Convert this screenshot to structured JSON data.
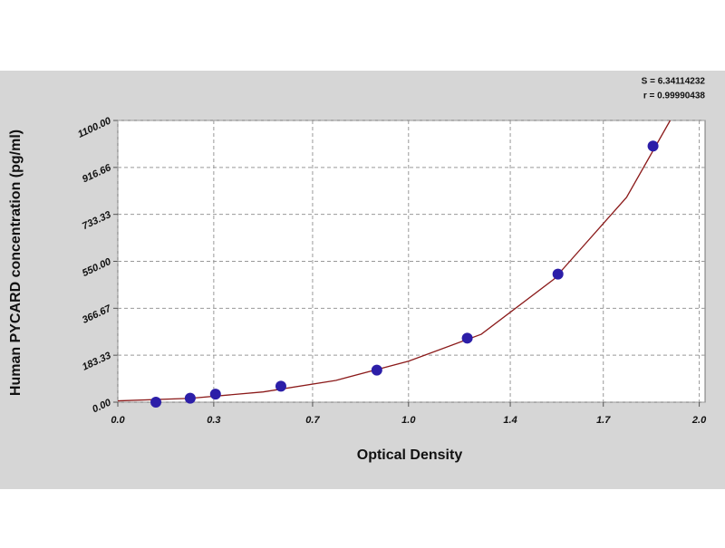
{
  "chart_data": {
    "type": "scatter",
    "x_label": "Optical Density",
    "y_label": "Human PYCARD concentration (pg/ml)",
    "annotations": [
      "S = 6.34114232",
      "r = 0.99990438"
    ],
    "xlim": [
      0,
      2.02
    ],
    "ylim": [
      0,
      1100
    ],
    "xticks": [
      {
        "value": 0,
        "label": "0.0"
      },
      {
        "value": 0.33,
        "label": "0.3"
      },
      {
        "value": 0.67,
        "label": "0.7"
      },
      {
        "value": 1,
        "label": "1.0"
      },
      {
        "value": 1.35,
        "label": "1.4"
      },
      {
        "value": 1.67,
        "label": "1.7"
      },
      {
        "value": 2,
        "label": "2.0"
      }
    ],
    "yticks": [
      {
        "value": 0,
        "label": "0.00"
      },
      183.33,
      366.67,
      {
        "value": 550,
        "label": "550.00"
      },
      733.33,
      916.66,
      {
        "value": 1100,
        "label": "1100.00"
      }
    ],
    "grid": true,
    "series": [
      {
        "type": "line",
        "color": "#8b1a1a",
        "x": [
          0,
          0.25,
          0.5,
          0.75,
          1.0,
          1.25,
          1.5,
          1.75,
          1.9
        ],
        "values": [
          5,
          15,
          40,
          85,
          160,
          265,
          480,
          800,
          1100
        ]
      },
      {
        "type": "scatter",
        "color": "#2c1ea8",
        "x": [
          0.131,
          0.249,
          0.336,
          0.561,
          0.891,
          1.202,
          1.514,
          1.841
        ],
        "values": [
          0,
          15.6,
          31.3,
          62.5,
          125,
          250,
          500,
          1000
        ]
      }
    ]
  }
}
